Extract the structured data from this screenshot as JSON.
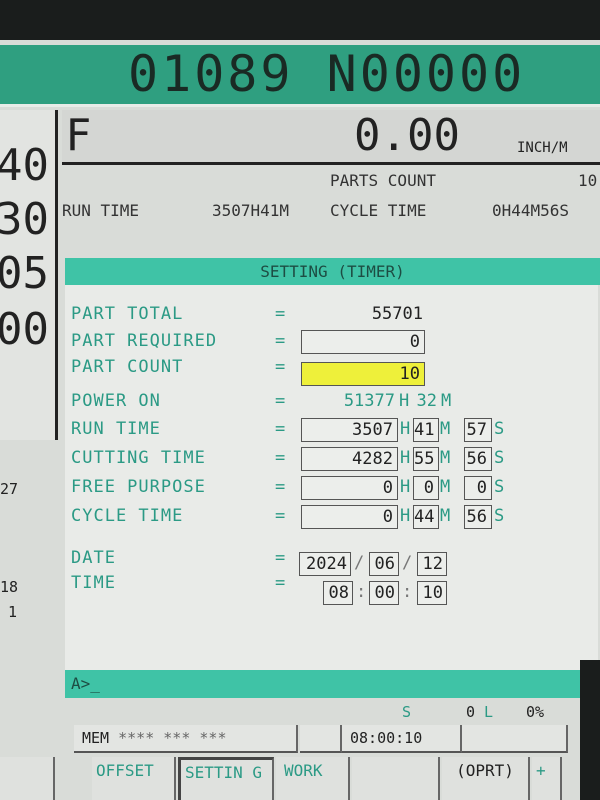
{
  "header": {
    "program": "01089 N00000"
  },
  "left_panel": {
    "values": [
      "40",
      "30",
      "05",
      "00"
    ],
    "small": [
      "27",
      "18",
      "1"
    ]
  },
  "feed": {
    "label": "F",
    "value": "0.00",
    "unit": "INCH/M"
  },
  "summary": {
    "parts_count_label": "PARTS COUNT",
    "parts_count": "10",
    "run_time_label": "RUN TIME",
    "run_time": "3507H41M",
    "cycle_time_label": "CYCLE TIME",
    "cycle_time": "0H44M56S"
  },
  "title": "SETTING (TIMER)",
  "rows": {
    "part_total": {
      "label": "PART TOTAL",
      "value": "55701"
    },
    "part_required": {
      "label": "PART REQUIRED",
      "value": "0"
    },
    "part_count": {
      "label": "PART COUNT",
      "value": "10"
    },
    "power_on": {
      "label": "POWER ON",
      "h": "51377",
      "m": "32"
    },
    "run_time": {
      "label": "RUN TIME",
      "h": "3507",
      "m": "41",
      "s": "57"
    },
    "cutting_time": {
      "label": "CUTTING TIME",
      "h": "4282",
      "m": "55",
      "s": "56"
    },
    "free_purpose": {
      "label": "FREE PURPOSE",
      "h": "0",
      "m": "0",
      "s": "0"
    },
    "cycle_time": {
      "label": "CYCLE TIME",
      "h": "0",
      "m": "44",
      "s": "56"
    },
    "date": {
      "label": "DATE",
      "y": "2024",
      "mo": "06",
      "d": "12"
    },
    "time": {
      "label": "TIME",
      "h": "08",
      "m": "00",
      "s": "10"
    }
  },
  "units": {
    "eq": "=",
    "h": "H",
    "m": "M",
    "s": "S",
    "slash": "/",
    "colon": ":"
  },
  "command": {
    "prompt": "A>_"
  },
  "status": {
    "s_label": "S",
    "s_value": "0",
    "l_label": "L",
    "percent": "0%",
    "mode": "MEM",
    "mode_stars": "**** *** ***",
    "clock": "08:00:10"
  },
  "softkeys": [
    "OFFSET",
    "SETTIN G",
    "WORK",
    "",
    "(OPRT)",
    "+"
  ],
  "colors": {
    "header": "#2f9f80",
    "title_bar": "#3fc3a6",
    "highlight": "#eef03a",
    "label": "#2b9a85"
  }
}
